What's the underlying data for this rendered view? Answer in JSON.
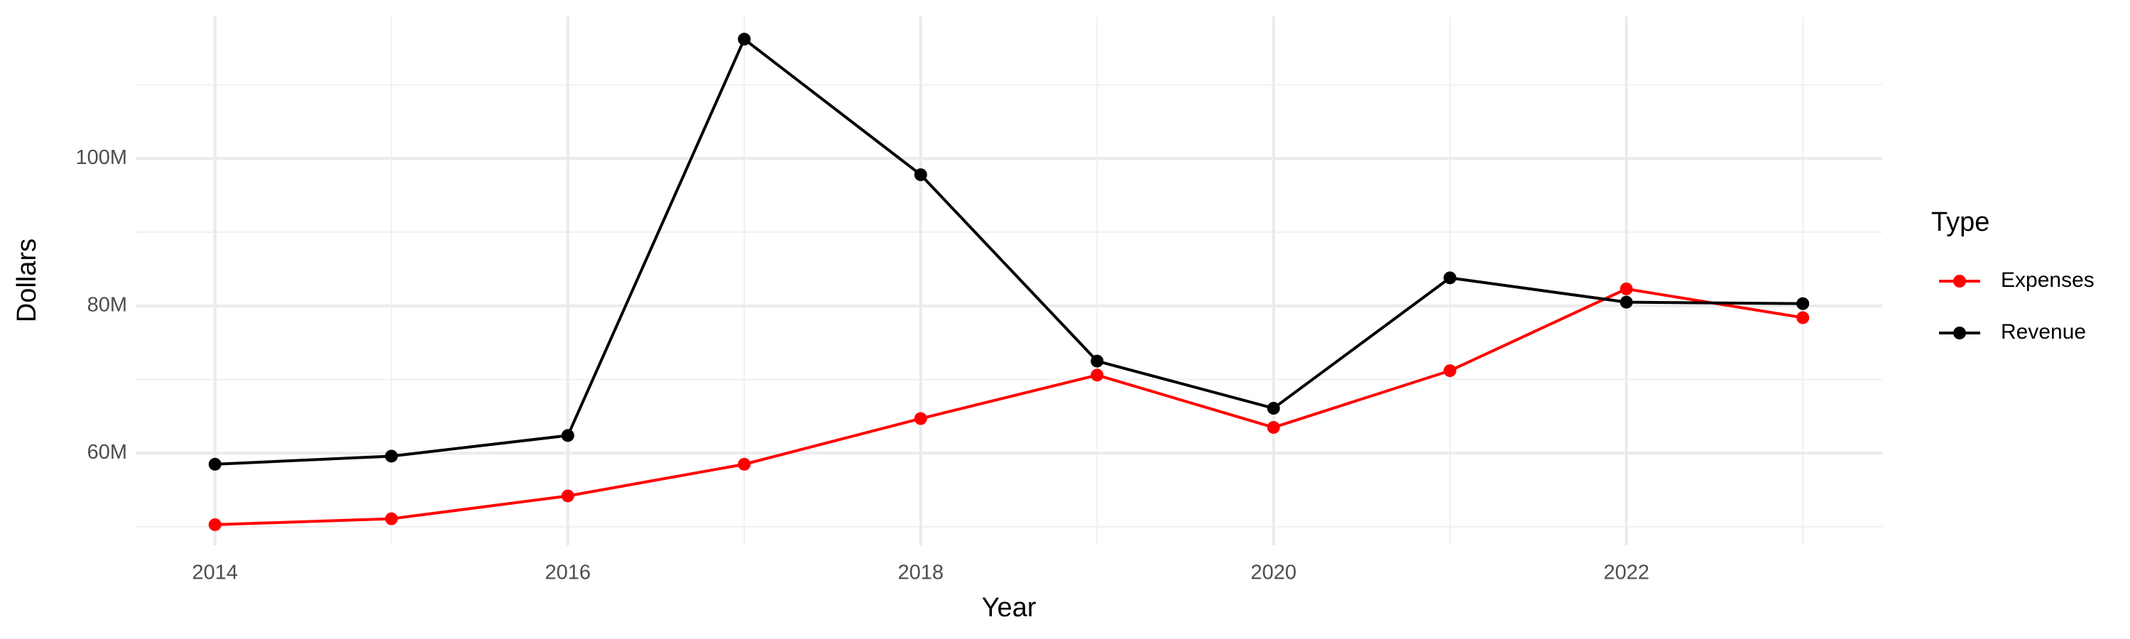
{
  "chart_data": {
    "type": "line",
    "x_label": "Year",
    "y_label": "Dollars",
    "x": [
      2014,
      2015,
      2016,
      2017,
      2018,
      2019,
      2020,
      2021,
      2022,
      2023
    ],
    "series": [
      {
        "name": "Expenses",
        "color": "#ff0000",
        "values": [
          50300000,
          51100000,
          54200000,
          58500000,
          64700000,
          70600000,
          63500000,
          71200000,
          82300000,
          78400000
        ]
      },
      {
        "name": "Revenue",
        "color": "#000000",
        "values": [
          58500000,
          59600000,
          62400000,
          116200000,
          97800000,
          72500000,
          66100000,
          83800000,
          80500000,
          80300000
        ]
      }
    ],
    "xlim": [
      2013.55,
      2023.45
    ],
    "xticks": [
      2014,
      2016,
      2018,
      2020,
      2022
    ],
    "x_minor_grid": [
      2015,
      2017,
      2019,
      2021,
      2023
    ],
    "ylim": [
      47500000,
      119300000
    ],
    "yticks": [
      {
        "value": 60000000,
        "label": "60M"
      },
      {
        "value": 80000000,
        "label": "80M"
      },
      {
        "value": 100000000,
        "label": "100M"
      }
    ],
    "y_minor_grid": [
      50000000,
      70000000,
      90000000,
      110000000
    ],
    "grid": true,
    "legend_title": "Type",
    "legend_position": "right"
  }
}
